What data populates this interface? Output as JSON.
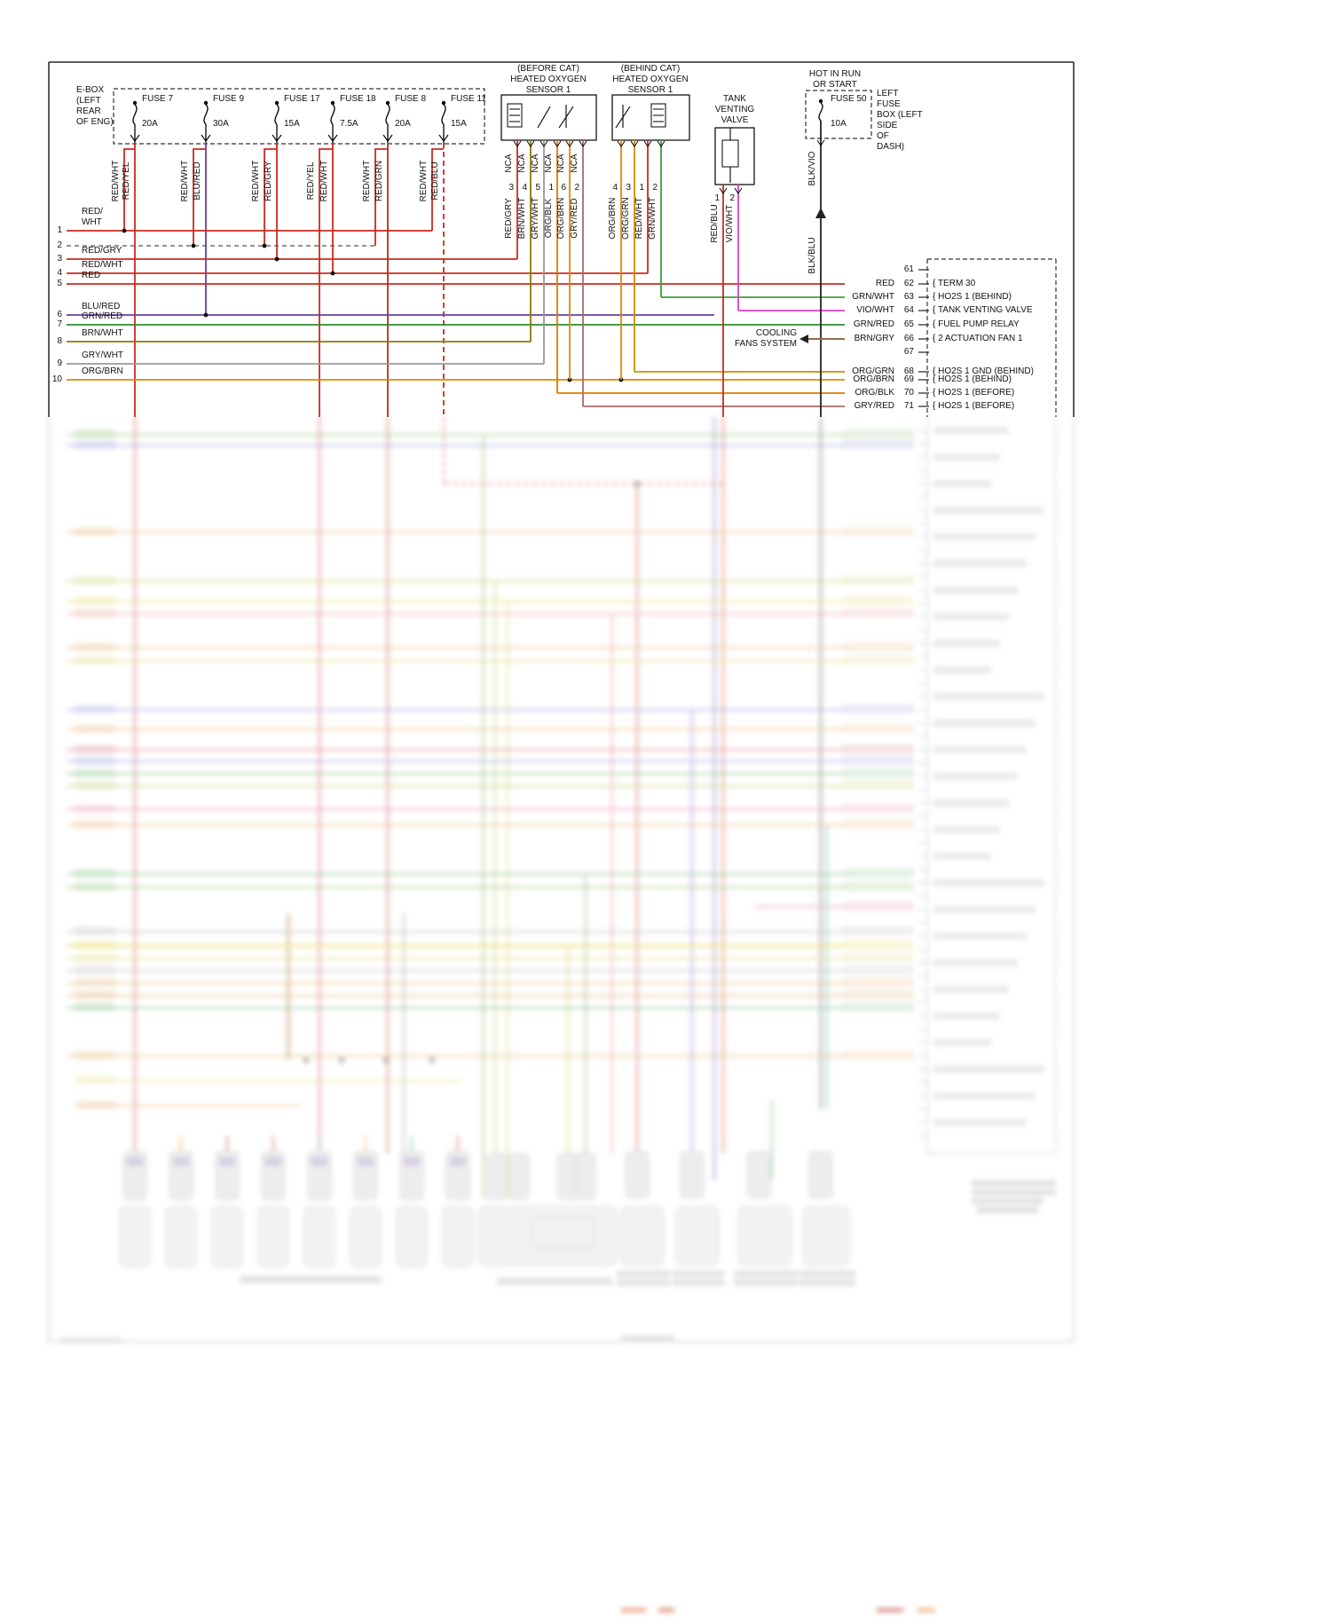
{
  "palette": {
    "RED": "#cc2a1e",
    "RED_WHT": "#cc2a1e",
    "RED_YEL": "#cc2a1e",
    "RED_GRY": "#cc2a1e",
    "RED_BLU": "#cc2a1e",
    "RED_GRN": "#b03020",
    "BLU_RED": "#6a3fa0",
    "GRN_RED": "#2e8b2e",
    "GRN_WHT": "#3a9e3a",
    "BRN_WHT": "#8a7a00",
    "BRN_GRY": "#8a6f4d",
    "GRY_WHT": "#999999",
    "GRY_RED": "#aa6a6a",
    "ORG_BRN": "#e08a00",
    "ORG_GRN": "#c89000",
    "ORG_BLK": "#e07800",
    "VIO_WHT": "#e040c0",
    "BLK": "#222222",
    "OPTION_DASHED": "#555555"
  },
  "header": {
    "e_box": "E-BOX\n(LEFT\nREAR\nOF ENG)"
  },
  "fuse_box": {
    "fuses": [
      {
        "name": "FUSE 7",
        "amp": "20A"
      },
      {
        "name": "FUSE 9",
        "amp": "30A"
      },
      {
        "name": "FUSE 17",
        "amp": "15A"
      },
      {
        "name": "FUSE 18",
        "amp": "7.5A"
      },
      {
        "name": "FUSE 8",
        "amp": "20A"
      },
      {
        "name": "FUSE 11",
        "amp": "15A"
      }
    ]
  },
  "fuse_wires": [
    "RED/WHT",
    "RED/YEL",
    "RED/WHT",
    "BLU/RED",
    "RED/WHT",
    "RED/GRY",
    "RED/YEL",
    "RED/WHT",
    "RED/WHT",
    "RED/GRN",
    "RED/WHT",
    "RED/BLU"
  ],
  "sensors": {
    "before_cat": {
      "title": "(BEFORE CAT)\nHEATED OXYGEN\nSENSOR 1",
      "nca": "NCA",
      "pins": [
        {
          "wire": "RED/GRY",
          "pin": "3"
        },
        {
          "wire": "BRN/WHT",
          "pin": "4"
        },
        {
          "wire": "GRY/WHT",
          "pin": "5"
        },
        {
          "wire": "ORG/BLK",
          "pin": "1"
        },
        {
          "wire": "ORG/BRN",
          "pin": "6"
        },
        {
          "wire": "GRY/RED",
          "pin": "2"
        }
      ]
    },
    "behind_cat": {
      "title": "(BEHIND CAT)\nHEATED OXYGEN\nSENSOR 1",
      "pins": [
        {
          "wire": "ORG/BRN",
          "pin": "4"
        },
        {
          "wire": "ORG/GRN",
          "pin": "3"
        },
        {
          "wire": "RED/WHT",
          "pin": "1"
        },
        {
          "wire": "GRN/WHT",
          "pin": "2"
        }
      ]
    }
  },
  "valve": {
    "title": "TANK\nVENTING\nVALVE",
    "pins": [
      {
        "wire": "RED/BLU",
        "pin": "1"
      },
      {
        "wire": "VIO/WHT",
        "pin": "2"
      }
    ]
  },
  "fuse50": {
    "header": "HOT IN RUN\nOR START",
    "name": "FUSE 50",
    "amp": "10A",
    "wires": [
      "BLK/VIO",
      "BLK/BLU"
    ],
    "box_label": "LEFT\nFUSE\nBOX (LEFT\nSIDE\nOF\nDASH)"
  },
  "cooling_fans": {
    "label": "COOLING\nFANS SYSTEM"
  },
  "left_pins": [
    {
      "n": "1",
      "label": "RED/\nWHT"
    },
    {
      "n": "2",
      "label": ""
    },
    {
      "n": "3",
      "label": "RED/GRY"
    },
    {
      "n": "4",
      "label": "RED/WHT"
    },
    {
      "n": "5",
      "label": "RED"
    },
    {
      "n": "6",
      "label": "BLU/RED"
    },
    {
      "n": "7",
      "label": "GRN/RED"
    },
    {
      "n": "8",
      "label": "BRN/WHT"
    },
    {
      "n": "9",
      "label": "GRY/WHT"
    },
    {
      "n": "10",
      "label": "ORG/BRN"
    }
  ],
  "right_terminals": [
    {
      "n": "61",
      "wire": "",
      "func": ""
    },
    {
      "n": "62",
      "wire": "RED",
      "func": "TERM 30"
    },
    {
      "n": "63",
      "wire": "GRN/WHT",
      "func": "HO2S 1 (BEHIND)"
    },
    {
      "n": "64",
      "wire": "VIO/WHT",
      "func": "TANK VENTING VALVE"
    },
    {
      "n": "65",
      "wire": "GRN/RED",
      "func": "FUEL PUMP RELAY"
    },
    {
      "n": "66",
      "wire": "BRN/GRY",
      "func": "2 ACTUATION FAN 1"
    },
    {
      "n": "67",
      "wire": "",
      "func": ""
    },
    {
      "n": "68",
      "wire": "ORG/GRN",
      "func": "HO2S 1 GND (BEHIND)"
    },
    {
      "n": "69",
      "wire": "ORG/BRN",
      "func": "HO2S 1 (BEHIND)"
    },
    {
      "n": "70",
      "wire": "ORG/BLK",
      "func": "HO2S 1 (BEFORE)"
    },
    {
      "n": "71",
      "wire": "GRY/RED",
      "func": "HO2S 1 (BEFORE)"
    }
  ]
}
